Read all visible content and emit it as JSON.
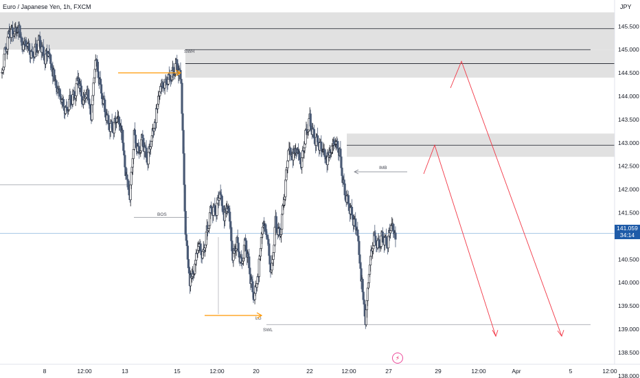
{
  "header": {
    "title": "Euro / Japanese Yen, 1h, FXCM",
    "currency": "JPY"
  },
  "price_badge": {
    "price": "141.059",
    "countdown": "34:14"
  },
  "colors": {
    "up": "#131722",
    "down": "#4a5a75",
    "zone": "#dcdcdc",
    "arrow": "#f23645",
    "orange": "#ff9800",
    "current_line": "#a8c8e6",
    "badge": "#1e5ba8"
  },
  "icons": {
    "bolt": "⚡"
  },
  "chart_data": {
    "type": "candlestick",
    "title": "Euro / Japanese Yen, 1h, FXCM",
    "ylim": [
      138.0,
      146.0
    ],
    "y_ticks": [
      "145.500",
      "145.000",
      "144.500",
      "144.000",
      "143.500",
      "143.000",
      "142.500",
      "142.000",
      "141.500",
      "141.000",
      "140.500",
      "140.000",
      "139.500",
      "139.000",
      "138.500",
      "138.000"
    ],
    "x_ticks": [
      "8",
      "12:00",
      "13",
      "15",
      "12:00",
      "20",
      "22",
      "12:00",
      "27",
      "29",
      "12:00",
      "Apr",
      "5",
      "12:00"
    ],
    "last_price": 141.059,
    "price_path": [
      144.5,
      145.0,
      145.4,
      145.3,
      145.45,
      145.1,
      145.2,
      144.9,
      145.0,
      145.2,
      144.8,
      144.9,
      144.5,
      144.2,
      144.0,
      143.7,
      143.9,
      144.0,
      144.4,
      143.8,
      144.1,
      143.6,
      144.9,
      144.3,
      143.8,
      143.4,
      143.3,
      143.5,
      143.3,
      142.4,
      141.9,
      143.2,
      142.8,
      143.1,
      142.6,
      143.0,
      143.5,
      144.2,
      144.3,
      144.4,
      144.5,
      144.7,
      144.3,
      141.0,
      140.0,
      140.3,
      140.9,
      140.6,
      141.1,
      141.6,
      141.5,
      141.9,
      141.4,
      141.7,
      140.6,
      140.9,
      140.4,
      140.9,
      140.2,
      139.6,
      140.2,
      141.3,
      141.1,
      140.2,
      141.3,
      141.0,
      141.8,
      142.8,
      142.7,
      142.9,
      142.6,
      143.2,
      143.5,
      143.1,
      143.0,
      142.8,
      142.6,
      142.9,
      143.1,
      142.8,
      142.0,
      141.7,
      141.4,
      141.1,
      140.1,
      139.2,
      140.5,
      141.0,
      140.8,
      141.0,
      140.8,
      141.2,
      141.0
    ],
    "zones": [
      {
        "price_top": 145.8,
        "price_bottom": 145.0
      },
      {
        "price_top": 145.0,
        "price_bottom": 144.4
      },
      {
        "price_top": 143.2,
        "price_bottom": 142.7
      }
    ],
    "levels": [
      145.45,
      144.7,
      142.95,
      142.1,
      141.4,
      139.1
    ],
    "labels": [
      "SWH",
      "LG",
      "BOS",
      "IMB",
      "LG",
      "SWL"
    ],
    "projection_peaks": [
      144.75,
      142.95
    ],
    "projection_target": 138.85,
    "legend": "none"
  }
}
